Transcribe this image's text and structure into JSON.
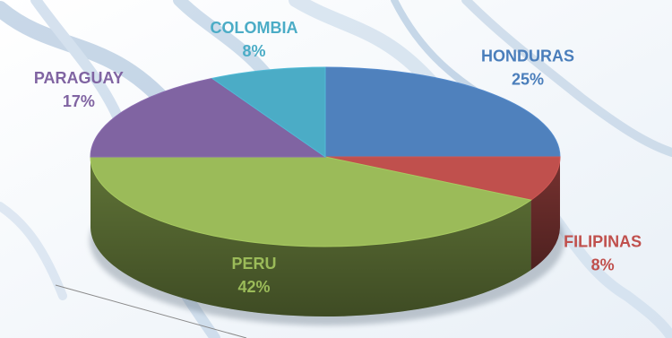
{
  "chart_data": {
    "type": "pie",
    "style": "3d-exploded-pie",
    "categories": [
      "HONDURAS",
      "FILIPINAS",
      "PERU",
      "PARAGUAY",
      "COLOMBIA"
    ],
    "values": [
      25,
      8,
      42,
      17,
      8
    ],
    "value_labels": [
      "25%",
      "8%",
      "42%",
      "17%",
      "8%"
    ],
    "colors": [
      "#4f81bd",
      "#c0504d",
      "#9bbb59",
      "#8064a2",
      "#4bacc6"
    ],
    "label_colors": [
      "#4a7ebb",
      "#c0504d",
      "#9bbb59",
      "#8064a2",
      "#4bacc6"
    ],
    "legend": "none"
  }
}
